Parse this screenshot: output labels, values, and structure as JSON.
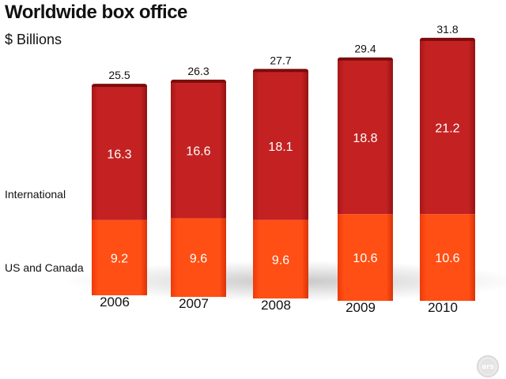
{
  "title": "Worldwide box office",
  "subtitle": "$ Billions",
  "logo_text": "ars",
  "chart_data": {
    "type": "bar",
    "stacked": true,
    "title": "Worldwide box office",
    "ylabel": "$ Billions",
    "categories": [
      "2006",
      "2007",
      "2008",
      "2009",
      "2010"
    ],
    "series": [
      {
        "name": "US and Canada",
        "values": [
          9.2,
          9.6,
          9.6,
          10.6,
          10.6
        ],
        "color": "#ff4d12"
      },
      {
        "name": "International",
        "values": [
          16.3,
          16.6,
          18.1,
          18.8,
          21.2
        ],
        "color": "#bf1f1f"
      }
    ],
    "totals": [
      25.5,
      26.3,
      27.7,
      29.4,
      31.8
    ],
    "ylim": [
      0,
      31.8
    ],
    "grid": false,
    "legend": "left"
  }
}
